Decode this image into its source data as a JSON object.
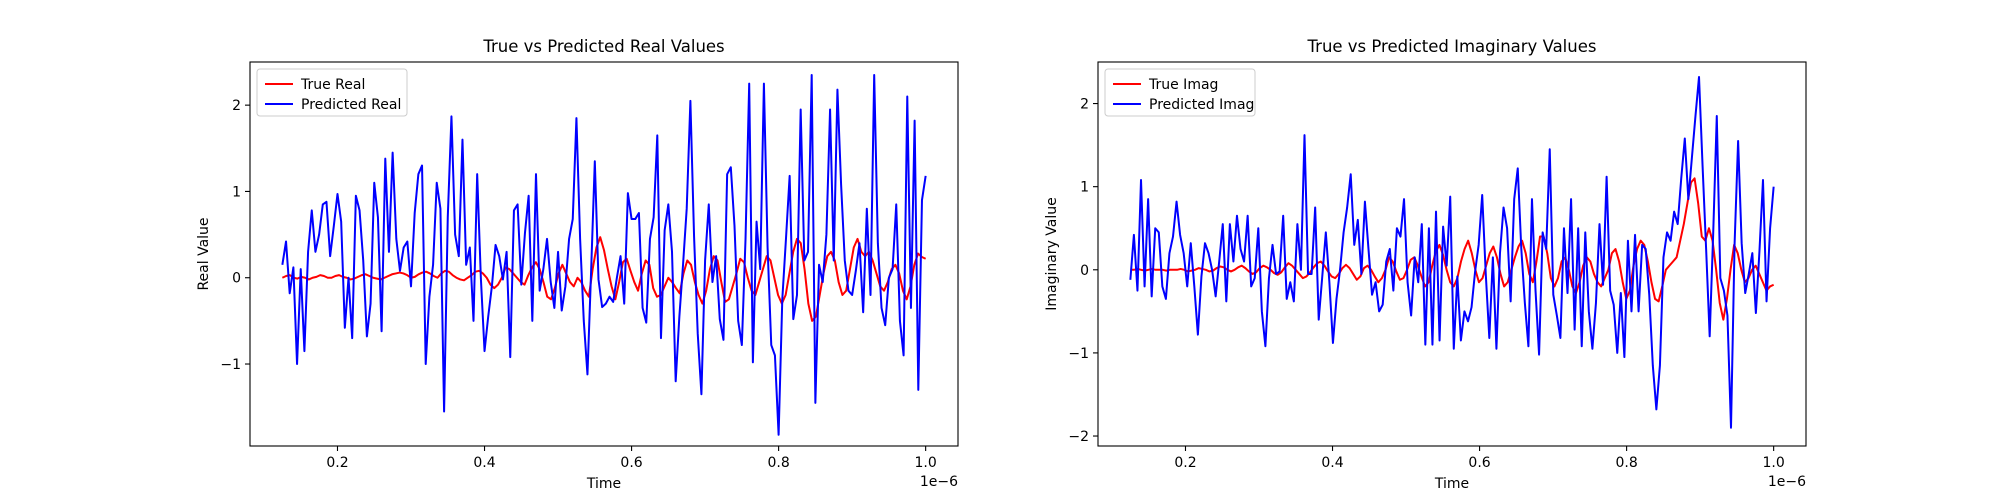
{
  "chart_data": [
    {
      "type": "line",
      "title": "True vs Predicted Real Values",
      "xlabel": "Time",
      "ylabel": "Real Value",
      "x_offset_text": "1e−6",
      "x_start": 0.125,
      "x_end": 1.0,
      "xlim": [
        0.081,
        1.044
      ],
      "ylim": [
        -1.95,
        2.5
      ],
      "xticks": [
        0.2,
        0.4,
        0.6,
        0.8,
        1.0
      ],
      "xtick_labels": [
        "0.2",
        "0.4",
        "0.6",
        "0.8",
        "1.0"
      ],
      "yticks": [
        -1,
        0,
        1,
        2
      ],
      "ytick_labels": [
        "−1",
        "0",
        "1",
        "2"
      ],
      "grid": false,
      "legend_position": "upper-left",
      "series": [
        {
          "name": "True Real",
          "color": "#ff0000",
          "values": [
            0.0,
            0.02,
            0.03,
            0.0,
            -0.01,
            0.01,
            0.0,
            -0.02,
            0.0,
            0.01,
            0.03,
            0.02,
            0.0,
            0.0,
            0.02,
            0.03,
            0.01,
            0.0,
            -0.02,
            -0.01,
            0.01,
            0.03,
            0.04,
            0.02,
            0.0,
            -0.01,
            -0.02,
            0.0,
            0.02,
            0.04,
            0.05,
            0.06,
            0.05,
            0.03,
            0.0,
            0.01,
            0.04,
            0.06,
            0.07,
            0.05,
            0.02,
            0.0,
            0.05,
            0.08,
            0.07,
            0.03,
            0.0,
            -0.02,
            -0.03,
            0.0,
            0.03,
            0.07,
            0.08,
            0.05,
            0.0,
            -0.08,
            -0.12,
            -0.08,
            0.0,
            0.12,
            0.1,
            0.05,
            0.0,
            -0.05,
            -0.08,
            0.03,
            0.12,
            0.18,
            0.1,
            -0.05,
            -0.22,
            -0.25,
            -0.12,
            0.05,
            0.15,
            0.05,
            -0.05,
            -0.1,
            0.0,
            -0.05,
            -0.15,
            -0.22,
            0.1,
            0.35,
            0.47,
            0.32,
            0.1,
            -0.1,
            -0.25,
            -0.05,
            0.18,
            0.22,
            0.08,
            -0.05,
            -0.15,
            0.05,
            0.2,
            0.15,
            -0.12,
            -0.22,
            -0.2,
            -0.1,
            0.0,
            -0.05,
            -0.12,
            -0.18,
            0.05,
            0.2,
            0.15,
            -0.05,
            -0.2,
            -0.3,
            -0.15,
            0.1,
            0.25,
            0.2,
            -0.05,
            -0.28,
            -0.25,
            -0.1,
            0.05,
            0.22,
            0.18,
            0.0,
            -0.15,
            -0.2,
            -0.05,
            0.1,
            0.25,
            0.2,
            0.0,
            -0.2,
            -0.3,
            -0.2,
            0.05,
            0.3,
            0.45,
            0.4,
            0.1,
            -0.3,
            -0.5,
            -0.45,
            -0.2,
            0.05,
            0.25,
            0.3,
            0.2,
            -0.05,
            -0.2,
            -0.15,
            0.1,
            0.35,
            0.45,
            0.3,
            0.25,
            0.3,
            0.2,
            0.05,
            -0.1,
            -0.15,
            -0.05,
            0.1,
            0.15,
            0.05,
            -0.15,
            -0.25,
            -0.1,
            0.15,
            0.28,
            0.24,
            0.22
          ]
        },
        {
          "name": "Predicted Real",
          "color": "#0000ff",
          "values": [
            0.15,
            0.42,
            -0.18,
            0.12,
            -1.0,
            0.1,
            -0.85,
            0.3,
            0.78,
            0.3,
            0.5,
            0.85,
            0.88,
            0.25,
            0.6,
            0.97,
            0.65,
            -0.58,
            0.0,
            -0.7,
            0.95,
            0.78,
            0.2,
            -0.68,
            -0.3,
            1.1,
            0.7,
            -0.62,
            1.38,
            0.3,
            1.45,
            0.45,
            0.08,
            0.35,
            0.42,
            -0.1,
            0.75,
            1.2,
            1.3,
            -1.0,
            -0.22,
            0.15,
            1.1,
            0.8,
            -1.55,
            0.7,
            1.87,
            0.5,
            0.25,
            1.6,
            0.15,
            0.35,
            -0.5,
            1.2,
            0.0,
            -0.85,
            -0.45,
            -0.1,
            0.38,
            0.25,
            -0.02,
            0.3,
            -0.92,
            0.78,
            0.85,
            -0.08,
            0.52,
            0.95,
            -0.5,
            1.2,
            -0.15,
            0.1,
            0.45,
            -0.05,
            -0.35,
            0.3,
            -0.38,
            -0.1,
            0.45,
            0.68,
            1.85,
            0.45,
            -0.5,
            -1.12,
            0.08,
            1.35,
            -0.02,
            -0.34,
            -0.3,
            -0.22,
            -0.28,
            0.0,
            0.25,
            -0.3,
            0.98,
            0.68,
            0.68,
            0.75,
            -0.35,
            -0.52,
            0.45,
            0.7,
            1.65,
            -0.7,
            0.55,
            0.85,
            0.3,
            -1.2,
            -0.45,
            0.15,
            0.8,
            2.05,
            0.48,
            -0.65,
            -1.35,
            0.2,
            0.85,
            -0.05,
            0.25,
            -0.48,
            -0.72,
            1.2,
            1.28,
            0.6,
            -0.5,
            -0.78,
            0.45,
            2.25,
            -0.98,
            0.65,
            0.1,
            2.25,
            0.35,
            -0.78,
            -0.9,
            -1.82,
            -0.25,
            0.45,
            1.18,
            -0.48,
            -0.2,
            1.95,
            0.2,
            0.3,
            2.35,
            -1.45,
            0.15,
            -0.05,
            0.5,
            1.95,
            0.2,
            2.18,
            1.08,
            0.2,
            -0.15,
            -0.2,
            0.08,
            0.4,
            -0.4,
            0.8,
            -0.2,
            2.35,
            0.4,
            -0.35,
            -0.55,
            0.0,
            0.1,
            0.85,
            -0.5,
            -0.9,
            2.1,
            -0.35,
            1.82,
            -1.3,
            0.9,
            1.18
          ]
        }
      ]
    },
    {
      "type": "line",
      "title": "True vs Predicted Imaginary Values",
      "xlabel": "Time",
      "ylabel": "Imaginary Value",
      "x_offset_text": "1e−6",
      "x_start": 0.125,
      "x_end": 1.0,
      "xlim": [
        0.081,
        1.044
      ],
      "ylim": [
        -2.12,
        2.5
      ],
      "xticks": [
        0.2,
        0.4,
        0.6,
        0.8,
        1.0
      ],
      "xtick_labels": [
        "0.2",
        "0.4",
        "0.6",
        "0.8",
        "1.0"
      ],
      "yticks": [
        -2,
        -1,
        0,
        1,
        2
      ],
      "ytick_labels": [
        "−2",
        "−1",
        "0",
        "1",
        "2"
      ],
      "grid": false,
      "legend_position": "upper-left",
      "series": [
        {
          "name": "True Imag",
          "color": "#ff0000",
          "values": [
            0.0,
            0.0,
            0.01,
            0.0,
            -0.01,
            0.0,
            0.01,
            0.0,
            0.0,
            0.0,
            -0.01,
            0.0,
            0.0,
            0.0,
            0.01,
            0.0,
            -0.02,
            -0.01,
            0.0,
            0.02,
            0.01,
            0.0,
            -0.02,
            -0.01,
            0.02,
            0.04,
            0.03,
            0.0,
            -0.02,
            0.0,
            0.03,
            0.05,
            0.02,
            -0.02,
            -0.05,
            -0.03,
            0.02,
            0.05,
            0.03,
            0.0,
            -0.04,
            -0.06,
            -0.03,
            0.03,
            0.08,
            0.05,
            0.0,
            -0.05,
            -0.1,
            -0.08,
            -0.03,
            0.03,
            0.08,
            0.1,
            0.05,
            -0.02,
            -0.08,
            -0.1,
            -0.05,
            0.02,
            0.06,
            0.02,
            -0.05,
            -0.12,
            -0.08,
            0.02,
            0.05,
            0.0,
            -0.08,
            -0.15,
            -0.1,
            0.0,
            0.15,
            0.1,
            -0.02,
            -0.12,
            -0.1,
            0.0,
            0.12,
            0.15,
            0.05,
            -0.08,
            -0.2,
            -0.15,
            0.05,
            0.22,
            0.3,
            0.18,
            0.0,
            -0.15,
            -0.2,
            -0.1,
            0.1,
            0.25,
            0.35,
            0.2,
            0.0,
            -0.15,
            -0.1,
            0.05,
            0.2,
            0.28,
            0.15,
            -0.05,
            -0.2,
            -0.15,
            0.0,
            0.15,
            0.28,
            0.35,
            0.2,
            -0.05,
            -0.15,
            0.1,
            0.4,
            0.4,
            0.2,
            -0.1,
            -0.2,
            -0.1,
            0.1,
            0.15,
            0.0,
            -0.2,
            -0.28,
            -0.15,
            0.05,
            0.15,
            0.1,
            -0.05,
            -0.15,
            -0.2,
            -0.1,
            0.0,
            0.2,
            0.25,
            0.1,
            -0.15,
            -0.35,
            -0.25,
            0.05,
            0.25,
            0.35,
            0.3,
            0.1,
            -0.15,
            -0.35,
            -0.38,
            -0.2,
            0.0,
            0.05,
            0.1,
            0.15,
            0.35,
            0.55,
            0.8,
            1.05,
            1.1,
            0.8,
            0.4,
            0.35,
            0.5,
            0.35,
            0.0,
            -0.4,
            -0.6,
            -0.35,
            0.0,
            0.3,
            0.2,
            0.0,
            -0.15,
            -0.1,
            0.0,
            0.05,
            -0.05,
            -0.15,
            -0.25,
            -0.2,
            -0.18
          ]
        },
        {
          "name": "Predicted Imag",
          "color": "#0000ff",
          "values": [
            -0.12,
            0.42,
            -0.25,
            1.08,
            -0.2,
            0.85,
            -0.32,
            0.5,
            0.45,
            -0.2,
            -0.35,
            0.2,
            0.4,
            0.82,
            0.42,
            0.2,
            -0.2,
            0.32,
            -0.2,
            -0.78,
            -0.08,
            0.32,
            0.2,
            0.0,
            -0.32,
            0.1,
            0.55,
            -0.38,
            0.55,
            0.1,
            0.65,
            0.25,
            0.1,
            0.65,
            -0.2,
            -0.1,
            0.5,
            -0.5,
            -0.92,
            -0.1,
            0.3,
            -0.05,
            -0.02,
            0.65,
            -0.35,
            -0.15,
            -0.38,
            0.55,
            0.0,
            1.62,
            -0.05,
            -0.05,
            0.75,
            -0.6,
            -0.08,
            0.45,
            -0.15,
            -0.88,
            -0.35,
            0.0,
            0.45,
            0.75,
            1.15,
            0.3,
            0.6,
            -0.05,
            0.82,
            0.25,
            -0.3,
            -0.15,
            -0.5,
            -0.42,
            0.1,
            0.25,
            -0.25,
            0.5,
            0.4,
            0.85,
            -0.15,
            -0.55,
            0.15,
            -0.15,
            0.55,
            -0.9,
            0.5,
            -0.9,
            0.7,
            -0.85,
            0.52,
            0.05,
            0.88,
            -0.95,
            -0.08,
            -0.85,
            -0.5,
            -0.62,
            -0.45,
            -0.02,
            0.3,
            0.9,
            -0.05,
            -0.82,
            0.15,
            -0.95,
            0.2,
            0.75,
            0.5,
            -0.38,
            0.85,
            1.22,
            0.25,
            -0.4,
            -0.92,
            0.85,
            -0.25,
            -1.02,
            0.45,
            0.25,
            1.45,
            -0.3,
            -0.55,
            -0.82,
            0.5,
            -0.28,
            0.85,
            -0.72,
            0.5,
            -0.92,
            0.45,
            -0.5,
            -0.95,
            -0.4,
            0.55,
            -0.18,
            1.12,
            -0.25,
            -0.42,
            -1.0,
            -0.28,
            -1.05,
            0.35,
            -0.5,
            0.42,
            -0.5,
            0.3,
            0.25,
            -0.3,
            -1.15,
            -1.68,
            -1.15,
            0.15,
            0.45,
            0.35,
            0.7,
            0.55,
            1.1,
            1.58,
            0.85,
            1.35,
            1.85,
            2.32,
            1.25,
            0.25,
            -0.8,
            0.45,
            1.85,
            -0.1,
            -0.25,
            -0.55,
            -1.9,
            0.3,
            1.55,
            0.32,
            -0.28,
            -0.05,
            0.2,
            -0.52,
            0.22,
            1.08,
            -0.38,
            0.5,
            1.0
          ]
        }
      ]
    }
  ]
}
